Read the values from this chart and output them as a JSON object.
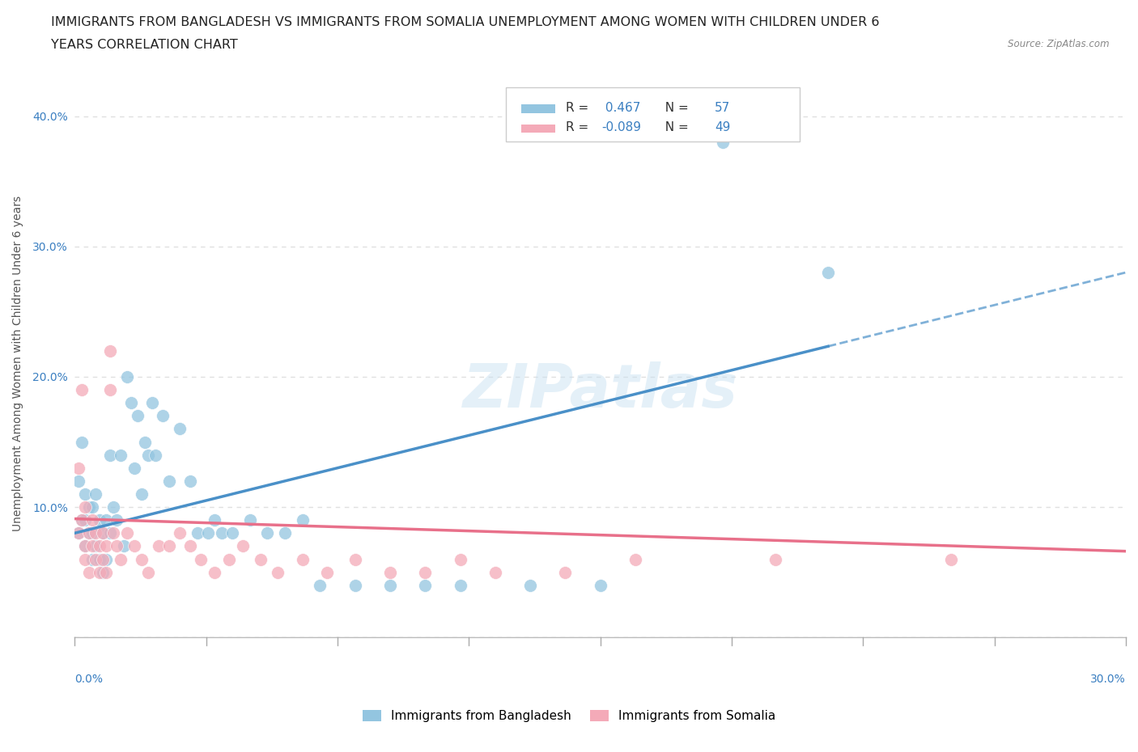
{
  "title_line1": "IMMIGRANTS FROM BANGLADESH VS IMMIGRANTS FROM SOMALIA UNEMPLOYMENT AMONG WOMEN WITH CHILDREN UNDER 6",
  "title_line2": "YEARS CORRELATION CHART",
  "source": "Source: ZipAtlas.com",
  "ylabel": "Unemployment Among Women with Children Under 6 years",
  "xlim": [
    0.0,
    0.3
  ],
  "ylim": [
    0.0,
    0.42
  ],
  "yticks": [
    0.0,
    0.1,
    0.2,
    0.3,
    0.4
  ],
  "ytick_labels": [
    "",
    "10.0%",
    "20.0%",
    "30.0%",
    "40.0%"
  ],
  "R_bangladesh": 0.467,
  "N_bangladesh": 57,
  "R_somalia": -0.089,
  "N_somalia": 49,
  "color_bangladesh": "#93c5e0",
  "color_somalia": "#f4aab8",
  "color_bangladesh_line": "#4a90c8",
  "color_somalia_line": "#e8708a",
  "legend_label_bangladesh": "Immigrants from Bangladesh",
  "legend_label_somalia": "Immigrants from Somalia",
  "watermark": "ZIPatlas",
  "background_color": "#ffffff",
  "grid_color": "#e0e0e0",
  "title_fontsize": 11.5,
  "axis_label_fontsize": 10,
  "tick_fontsize": 10,
  "legend_fontsize": 11,
  "bangladesh_x": [
    0.001,
    0.001,
    0.002,
    0.002,
    0.003,
    0.003,
    0.003,
    0.004,
    0.004,
    0.005,
    0.005,
    0.005,
    0.006,
    0.006,
    0.007,
    0.007,
    0.008,
    0.008,
    0.009,
    0.009,
    0.01,
    0.01,
    0.011,
    0.012,
    0.013,
    0.014,
    0.015,
    0.016,
    0.017,
    0.018,
    0.019,
    0.02,
    0.021,
    0.022,
    0.023,
    0.025,
    0.027,
    0.03,
    0.033,
    0.035,
    0.038,
    0.04,
    0.042,
    0.045,
    0.05,
    0.055,
    0.06,
    0.065,
    0.07,
    0.08,
    0.09,
    0.1,
    0.11,
    0.13,
    0.15,
    0.185,
    0.215
  ],
  "bangladesh_y": [
    0.08,
    0.12,
    0.09,
    0.15,
    0.07,
    0.09,
    0.11,
    0.08,
    0.1,
    0.06,
    0.08,
    0.1,
    0.07,
    0.11,
    0.06,
    0.09,
    0.05,
    0.08,
    0.06,
    0.09,
    0.08,
    0.14,
    0.1,
    0.09,
    0.14,
    0.07,
    0.2,
    0.18,
    0.13,
    0.17,
    0.11,
    0.15,
    0.14,
    0.18,
    0.14,
    0.17,
    0.12,
    0.16,
    0.12,
    0.08,
    0.08,
    0.09,
    0.08,
    0.08,
    0.09,
    0.08,
    0.08,
    0.09,
    0.04,
    0.04,
    0.04,
    0.04,
    0.04,
    0.04,
    0.04,
    0.38,
    0.28
  ],
  "somalia_x": [
    0.001,
    0.001,
    0.002,
    0.002,
    0.003,
    0.003,
    0.003,
    0.004,
    0.004,
    0.005,
    0.005,
    0.006,
    0.006,
    0.007,
    0.007,
    0.008,
    0.008,
    0.009,
    0.009,
    0.01,
    0.01,
    0.011,
    0.012,
    0.013,
    0.015,
    0.017,
    0.019,
    0.021,
    0.024,
    0.027,
    0.03,
    0.033,
    0.036,
    0.04,
    0.044,
    0.048,
    0.053,
    0.058,
    0.065,
    0.072,
    0.08,
    0.09,
    0.1,
    0.11,
    0.12,
    0.14,
    0.16,
    0.2,
    0.25
  ],
  "somalia_y": [
    0.08,
    0.13,
    0.19,
    0.09,
    0.07,
    0.1,
    0.06,
    0.05,
    0.08,
    0.07,
    0.09,
    0.06,
    0.08,
    0.05,
    0.07,
    0.06,
    0.08,
    0.05,
    0.07,
    0.19,
    0.22,
    0.08,
    0.07,
    0.06,
    0.08,
    0.07,
    0.06,
    0.05,
    0.07,
    0.07,
    0.08,
    0.07,
    0.06,
    0.05,
    0.06,
    0.07,
    0.06,
    0.05,
    0.06,
    0.05,
    0.06,
    0.05,
    0.05,
    0.06,
    0.05,
    0.05,
    0.06,
    0.06,
    0.06
  ]
}
